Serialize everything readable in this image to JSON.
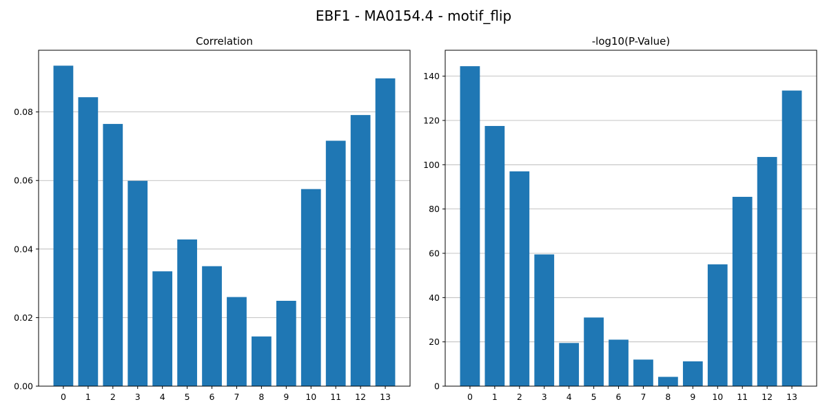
{
  "figure": {
    "title": "EBF1 - MA0154.4 - motif_flip",
    "bar_color": "#1f77b4"
  },
  "chart_data": [
    {
      "type": "bar",
      "title": "Correlation",
      "xlabel": "",
      "ylabel": "",
      "categories": [
        "0",
        "1",
        "2",
        "3",
        "4",
        "5",
        "6",
        "7",
        "8",
        "9",
        "10",
        "11",
        "12",
        "13"
      ],
      "values": [
        0.0935,
        0.0843,
        0.0765,
        0.0599,
        0.0335,
        0.0428,
        0.035,
        0.026,
        0.0145,
        0.0249,
        0.0575,
        0.0716,
        0.0791,
        0.0898
      ],
      "ylim": [
        0,
        0.098
      ],
      "yticks": [
        "0.00",
        "0.02",
        "0.04",
        "0.06",
        "0.08"
      ],
      "ytick_values": [
        0,
        0.02,
        0.04,
        0.06,
        0.08
      ],
      "grid": "y"
    },
    {
      "type": "bar",
      "title": "-log10(P-Value)",
      "xlabel": "",
      "ylabel": "",
      "categories": [
        "0",
        "1",
        "2",
        "3",
        "4",
        "5",
        "6",
        "7",
        "8",
        "9",
        "10",
        "11",
        "12",
        "13"
      ],
      "values": [
        144.5,
        117.5,
        97.0,
        59.5,
        19.5,
        31.0,
        21.0,
        12.0,
        4.2,
        11.2,
        55.0,
        85.5,
        103.5,
        133.5
      ],
      "ylim": [
        0,
        151.7
      ],
      "yticks": [
        "0",
        "20",
        "40",
        "60",
        "80",
        "100",
        "120",
        "140"
      ],
      "ytick_values": [
        0,
        20,
        40,
        60,
        80,
        100,
        120,
        140
      ],
      "grid": "y"
    }
  ]
}
